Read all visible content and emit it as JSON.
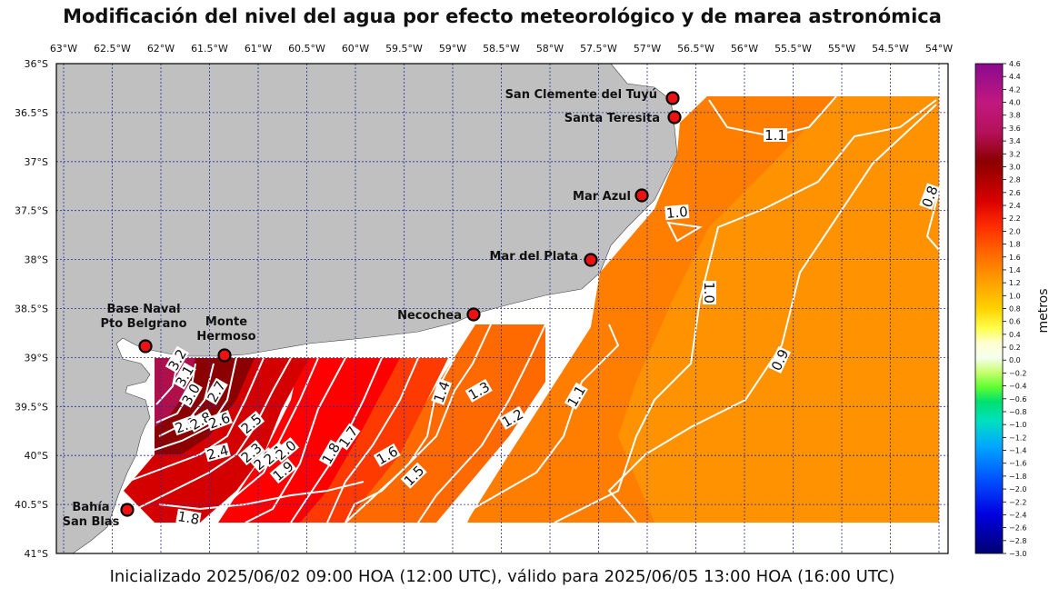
{
  "title": "Modificación del nivel del agua por efecto meteorológico y de marea astronómica",
  "footer": "Inicializado 2025/06/02 09:00 HOA (12:00 UTC), válido para 2025/06/05 13:00 HOA (16:00 UTC)",
  "lon_ticks": [
    "63°W",
    "62.5°W",
    "62°W",
    "61.5°W",
    "61°W",
    "60.5°W",
    "60°W",
    "59.5°W",
    "59°W",
    "58.5°W",
    "58°W",
    "57.5°W",
    "57°W",
    "56.5°W",
    "56°W",
    "55.5°W",
    "55°W",
    "54.5°W",
    "54°W"
  ],
  "lat_ticks": [
    "36°S",
    "36.5°S",
    "37°S",
    "37.5°S",
    "38°S",
    "38.5°S",
    "39°S",
    "39.5°S",
    "40°S",
    "40.5°S",
    "41°S"
  ],
  "colorbar": {
    "label": "metros",
    "ticks": [
      "4.6",
      "4.4",
      "4.2",
      "4.0",
      "3.8",
      "3.6",
      "3.4",
      "3.2",
      "3.0",
      "2.8",
      "2.6",
      "2.4",
      "2.2",
      "2.0",
      "1.8",
      "1.6",
      "1.4",
      "1.2",
      "1.0",
      "0.8",
      "0.6",
      "0.4",
      "0.2",
      "0.0",
      "−0.2",
      "−0.4",
      "−0.6",
      "−0.8",
      "−1.0",
      "−1.2",
      "−1.4",
      "−1.6",
      "−1.8",
      "−2.0",
      "−2.2",
      "−2.4",
      "−2.6",
      "−2.8",
      "−3.0"
    ]
  },
  "stations": [
    {
      "name": "San Clemente del Tuyú",
      "lines": [
        "San Clemente del Tuyú"
      ]
    },
    {
      "name": "Santa Teresita",
      "lines": [
        "Santa Teresita"
      ]
    },
    {
      "name": "Mar Azul",
      "lines": [
        "Mar Azul"
      ]
    },
    {
      "name": "Mar del Plata",
      "lines": [
        "Mar del Plata"
      ]
    },
    {
      "name": "Necochea",
      "lines": [
        "Necochea"
      ]
    },
    {
      "name": "Monte Hermoso",
      "lines": [
        "Monte",
        "Hermoso"
      ]
    },
    {
      "name": "Base Naval Pto Belgrano",
      "lines": [
        "Base Naval",
        "Pto Belgrano"
      ]
    },
    {
      "name": "Bahía San Blas",
      "lines": [
        "Bahía",
        "San Blas"
      ]
    }
  ],
  "contour_labels": [
    "3.2",
    "3.1",
    "3.0",
    "2.9",
    "2.8",
    "2.7",
    "2.6",
    "2.5",
    "2.4",
    "2.3",
    "2.2",
    "2.1",
    "2.0",
    "1.9",
    "1.8",
    "1.7",
    "1.6",
    "1.5",
    "1.4",
    "1.3",
    "1.2",
    "1.1",
    "1.0",
    "0.9",
    "0.8"
  ],
  "colors": {
    "land": "#c0c0c0",
    "grid": "#2b2ba0",
    "station_fill": "#ee1111",
    "contour": "#ffffff"
  }
}
